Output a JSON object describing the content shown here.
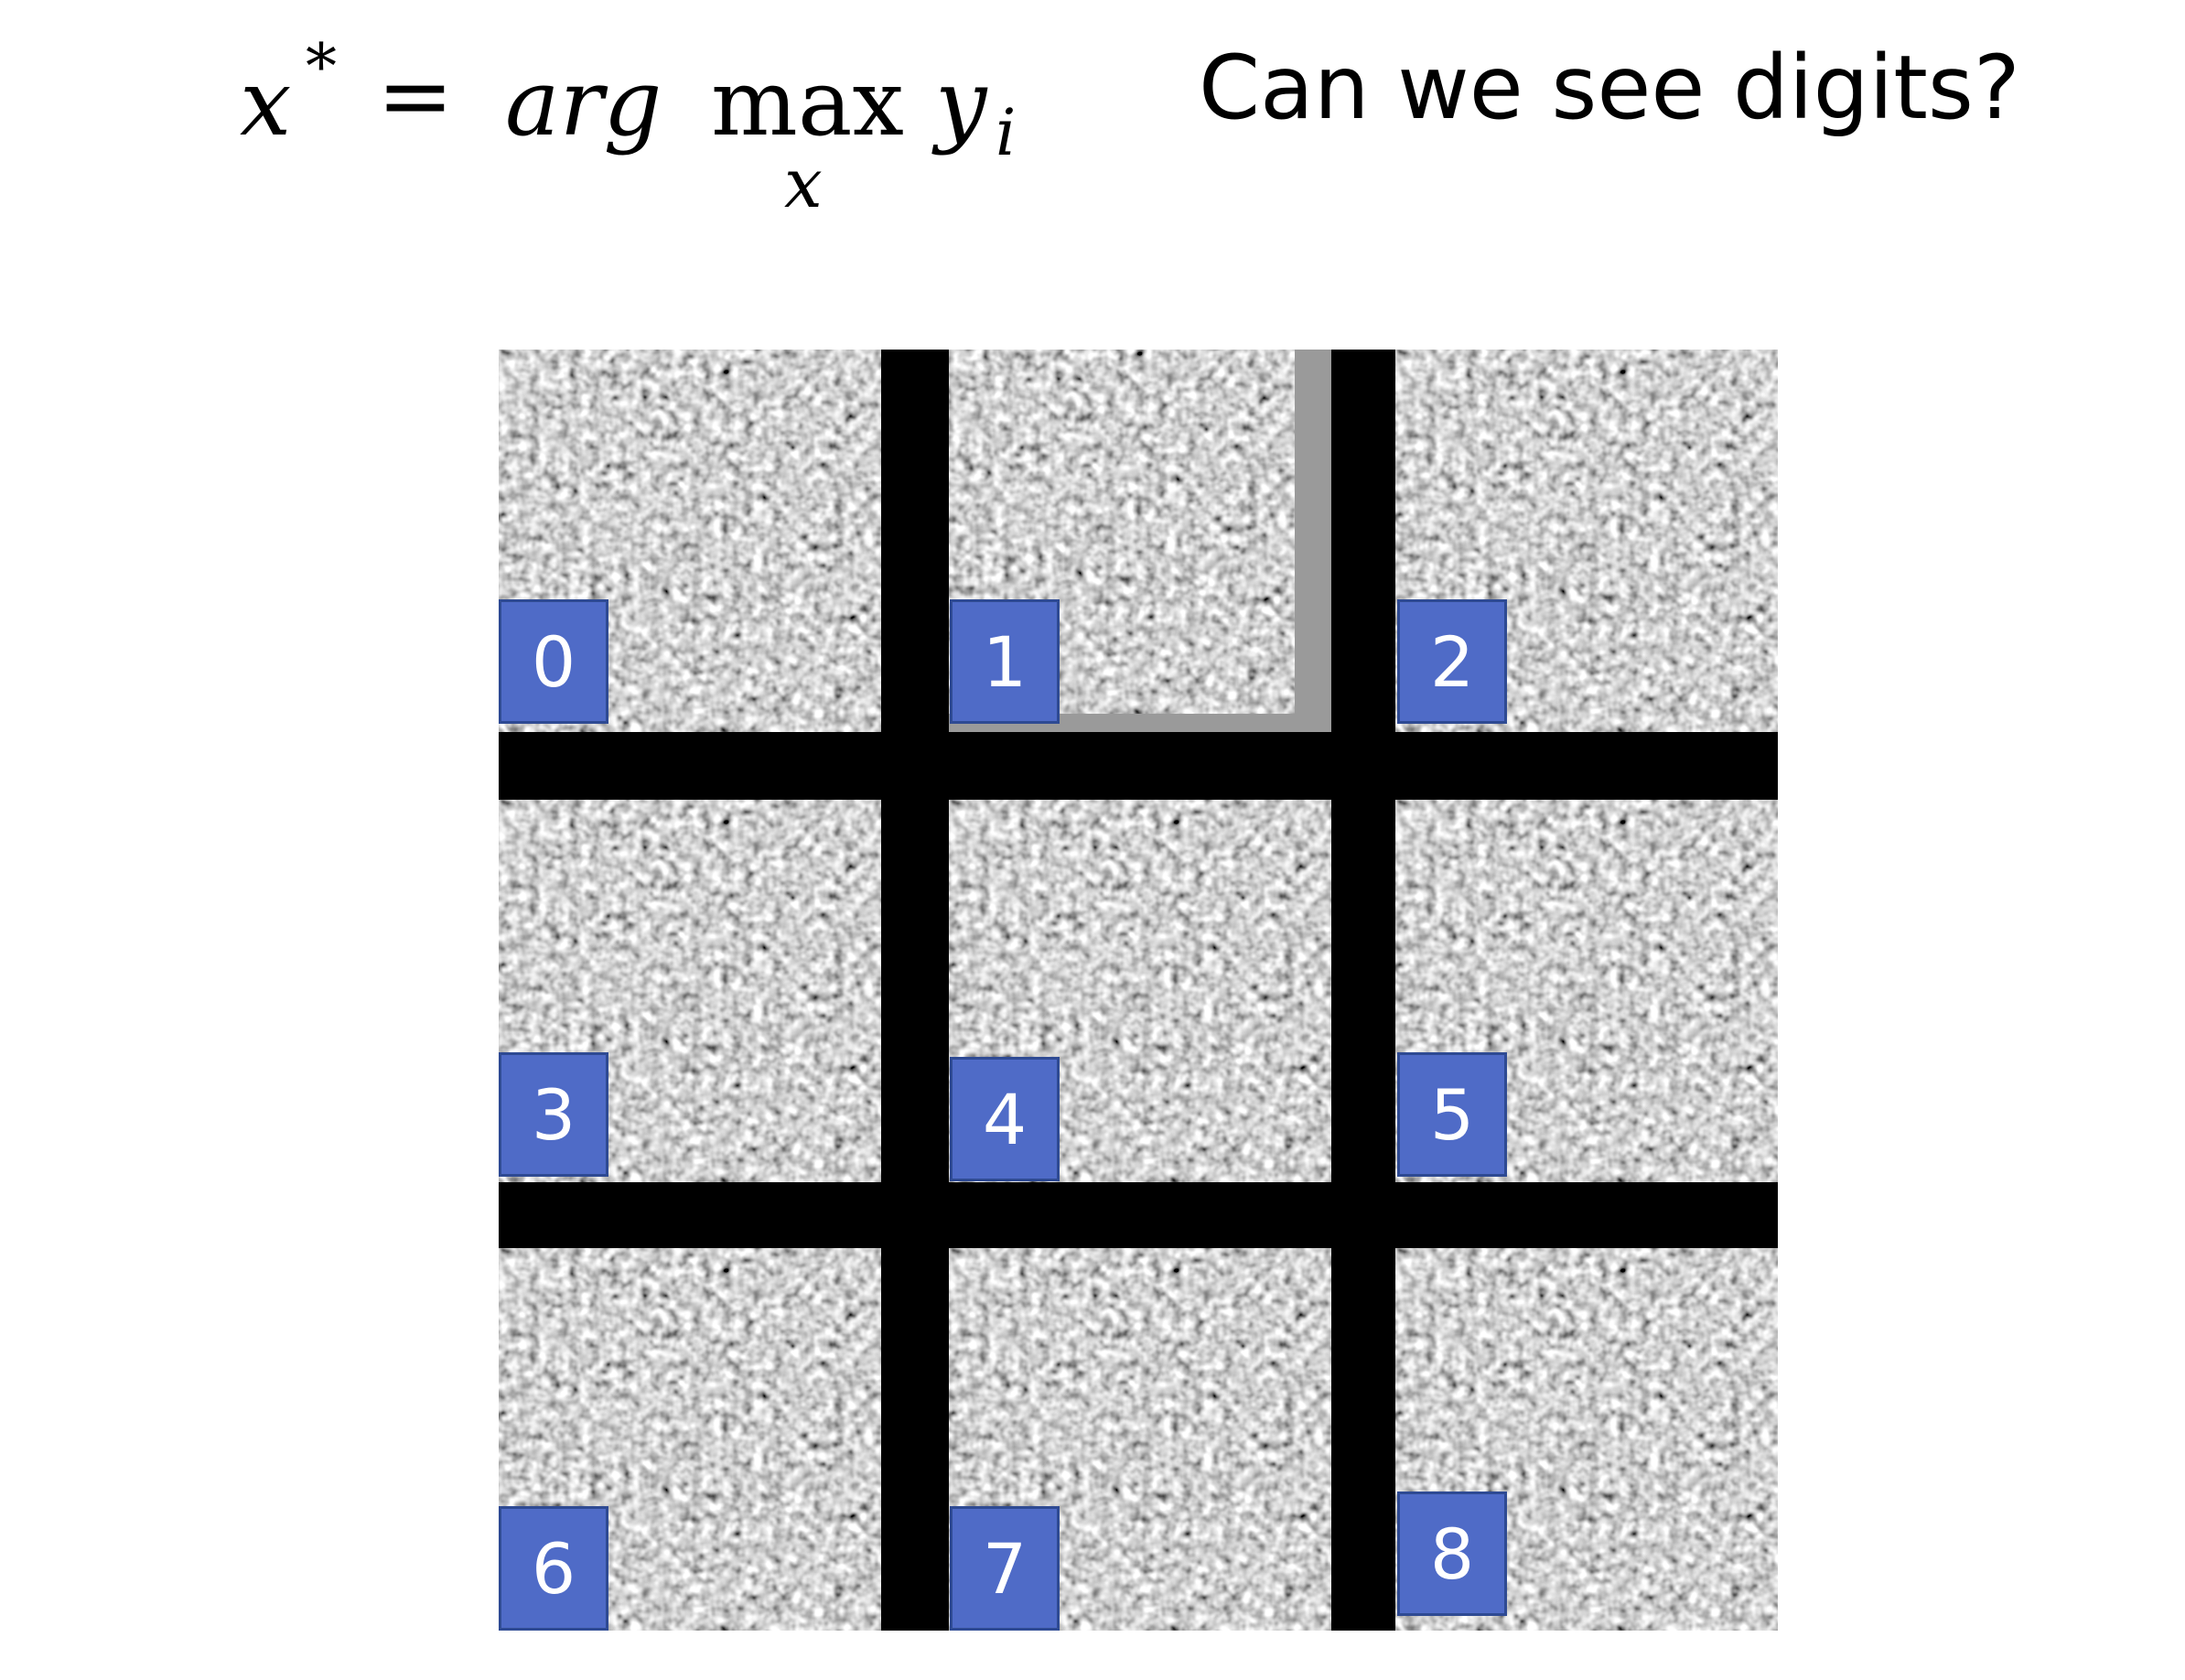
{
  "formula": {
    "x": "x",
    "star": "*",
    "equals": "=",
    "arg": "arg",
    "max": "max",
    "max_sub": "x",
    "y": "y",
    "y_sub": "i"
  },
  "question": "Can we see digits?",
  "tiles": [
    {
      "label": "0"
    },
    {
      "label": "1"
    },
    {
      "label": "2"
    },
    {
      "label": "3"
    },
    {
      "label": "4"
    },
    {
      "label": "5"
    },
    {
      "label": "6"
    },
    {
      "label": "7"
    },
    {
      "label": "8"
    }
  ],
  "colors": {
    "label_fill": "#4f6bc7",
    "label_border": "#2e4a93",
    "grid_background": "#000000"
  }
}
